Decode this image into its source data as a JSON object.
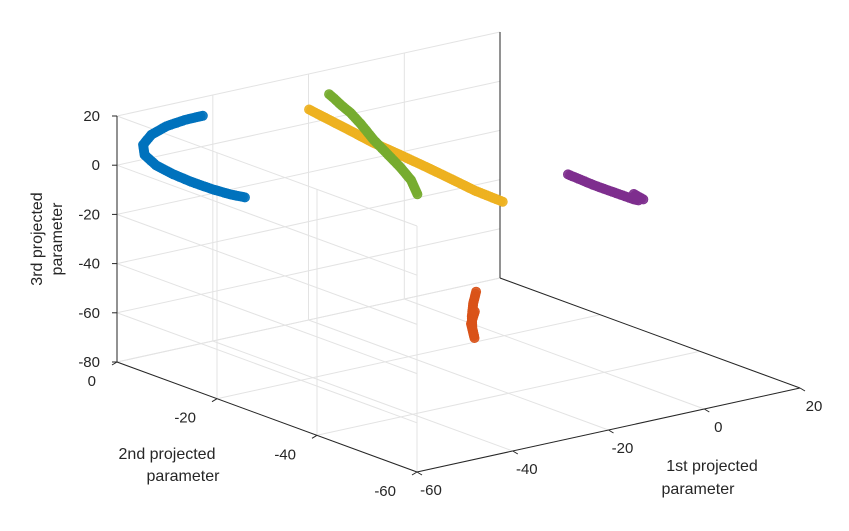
{
  "chart_data": {
    "type": "scatter3d",
    "title": "",
    "xlabel": [
      "1st projected",
      "parameter"
    ],
    "ylabel": [
      "2nd projected",
      "parameter"
    ],
    "zlabel": [
      "3rd projected",
      "parameter"
    ],
    "xlim": [
      -60,
      20
    ],
    "ylim": [
      -60,
      0
    ],
    "zlim": [
      -80,
      20
    ],
    "xticks": [
      -60,
      -40,
      -20,
      0,
      20
    ],
    "yticks": [
      -60,
      -40,
      -20,
      0
    ],
    "zticks": [
      -80,
      -60,
      -40,
      -20,
      0,
      20
    ],
    "grid": true,
    "legend": "none",
    "series": [
      {
        "color": "#0072BD",
        "points": [
          [
            -52.2,
            -9.7,
            24.0
          ],
          [
            -53.8,
            -7.6,
            21.4
          ],
          [
            -55.5,
            -5.6,
            18.1
          ],
          [
            -57.0,
            -4.0,
            14.1
          ],
          [
            -58.0,
            -3.3,
            9.9
          ],
          [
            -58.0,
            -3.6,
            6.0
          ],
          [
            -57.1,
            -5.0,
            2.5
          ],
          [
            -55.7,
            -7.1,
            -0.2
          ],
          [
            -54.2,
            -9.3,
            -2.3
          ],
          [
            -52.6,
            -11.9,
            -4.0
          ],
          [
            -51.2,
            -14.3,
            -5.0
          ],
          [
            -50.1,
            -16.1,
            -5.3
          ]
        ]
      },
      {
        "color": "#D95319",
        "points": [
          [
            -25.2,
            -38.5,
            -37.6
          ],
          [
            -25.8,
            -38.5,
            -42.0
          ],
          [
            -26.3,
            -38.7,
            -46.9
          ],
          [
            -26.8,
            -39.3,
            -51.5
          ],
          [
            -26.9,
            -39.8,
            -54.7
          ],
          [
            -27.0,
            -39.2,
            -49.3
          ],
          [
            -26.2,
            -39.2,
            -44.7
          ]
        ]
      },
      {
        "color": "#EDB120",
        "points": [
          [
            -27.4,
            -7.2,
            14.1
          ],
          [
            -26.2,
            -10.1,
            11.5
          ],
          [
            -24.8,
            -13.5,
            8.5
          ],
          [
            -23.6,
            -16.3,
            5.8
          ],
          [
            -21.9,
            -20.4,
            2.9
          ],
          [
            -20.2,
            -24.5,
            -0.2
          ],
          [
            -18.9,
            -28.0,
            -2.8
          ],
          [
            -17.8,
            -31.1,
            -5.1
          ],
          [
            -16.1,
            -35.1,
            -7.4
          ]
        ]
      },
      {
        "color": "#7E2F8E",
        "points": [
          [
            -1.1,
            -33.8,
            -3.7
          ],
          [
            1.1,
            -33.8,
            -6.4
          ],
          [
            3.9,
            -34.0,
            -9.9
          ],
          [
            6.9,
            -34.2,
            -13.3
          ],
          [
            9.7,
            -34.4,
            -16.4
          ],
          [
            11.9,
            -34.5,
            -18.9
          ],
          [
            12.9,
            -34.5,
            -19.7
          ],
          [
            12.1,
            -34.3,
            -16.9
          ],
          [
            13.8,
            -34.6,
            -19.6
          ]
        ]
      },
      {
        "color": "#77AC30",
        "points": [
          [
            -31.5,
            -32.8,
            0.5
          ],
          [
            -29.9,
            -30.0,
            3.4
          ],
          [
            -28.7,
            -26.7,
            5.7
          ],
          [
            -27.7,
            -23.3,
            7.8
          ],
          [
            -26.6,
            -19.4,
            10.4
          ],
          [
            -25.1,
            -15.4,
            13.2
          ],
          [
            -24.1,
            -12.3,
            15.2
          ],
          [
            -23.6,
            -10.1,
            16.2
          ],
          [
            -23.2,
            -8.2,
            17.5
          ],
          [
            -23.0,
            -7.0,
            18.3
          ]
        ]
      }
    ]
  }
}
